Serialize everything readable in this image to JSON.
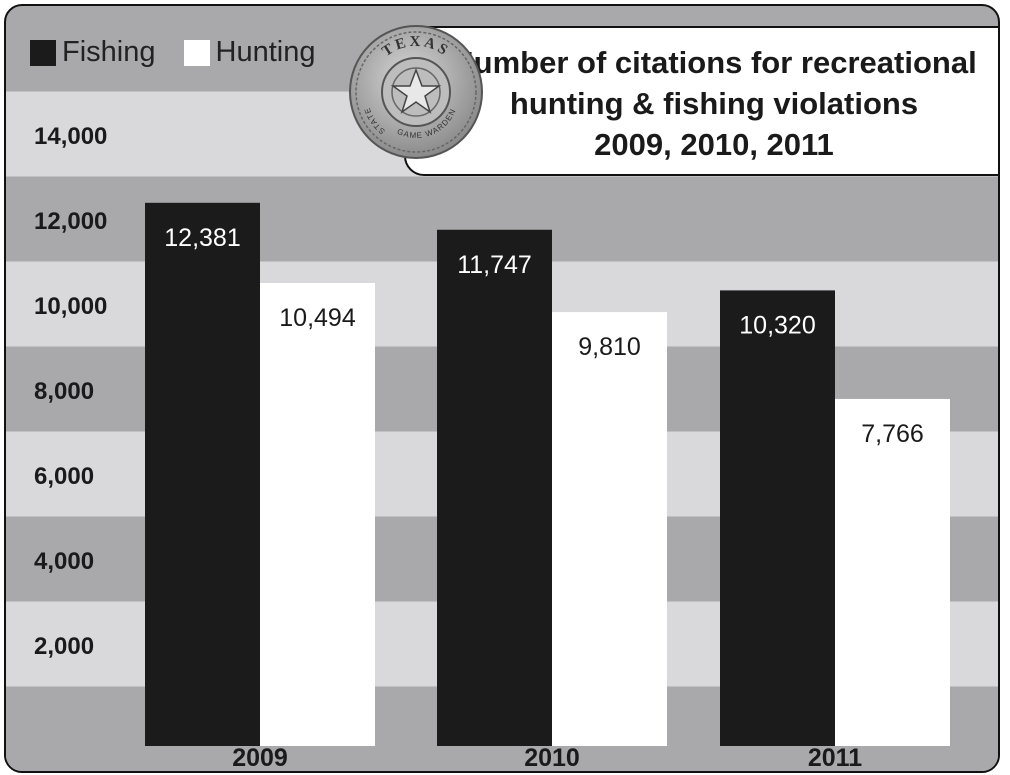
{
  "chart_data": {
    "type": "bar",
    "title_lines": [
      "Number of citations for recreational",
      "hunting & fishing violations",
      "2009, 2010, 2011"
    ],
    "categories": [
      "2009",
      "2010",
      "2011"
    ],
    "series": [
      {
        "name": "Fishing",
        "values": [
          12381,
          11747,
          10320
        ],
        "labels": [
          "12,381",
          "11,747",
          "10,320"
        ],
        "color": "#1b1b1b"
      },
      {
        "name": "Hunting",
        "values": [
          10494,
          9810,
          7766
        ],
        "labels": [
          "10,494",
          "9,810",
          "7,766"
        ],
        "color": "#ffffff"
      }
    ],
    "y_ticks": [
      "2,000",
      "4,000",
      "6,000",
      "8,000",
      "10,000",
      "12,000",
      "14,000"
    ],
    "ylim": [
      0,
      15000
    ],
    "grid_bands": true,
    "legend_position": "top-left",
    "band_colors": [
      "#a9a9ab",
      "#d9d9db"
    ]
  },
  "seal": {
    "top_text": "TEXAS",
    "bottom_text": "GAME WARDEN",
    "left_text": "STATE"
  }
}
